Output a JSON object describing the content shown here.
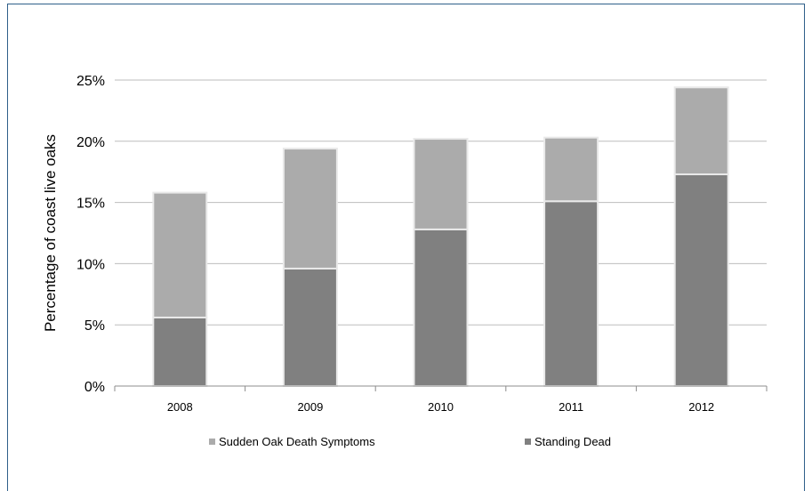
{
  "chart_data": {
    "type": "bar",
    "stacked": true,
    "title": "",
    "xlabel": "",
    "ylabel": "Percentage of coast live oaks",
    "categories": [
      "2008",
      "2009",
      "2010",
      "2011",
      "2012"
    ],
    "series": [
      {
        "name": "Standing Dead",
        "values": [
          5.6,
          9.6,
          12.8,
          15.1,
          17.3
        ],
        "color": "#808080"
      },
      {
        "name": "Sudden Oak Death Symptoms",
        "values": [
          10.2,
          9.8,
          7.4,
          5.2,
          7.1
        ],
        "color": "#ababab"
      }
    ],
    "ylim": [
      0,
      25
    ],
    "yticks": [
      "0%",
      "5%",
      "10%",
      "15%",
      "20%",
      "25%"
    ],
    "grid": true,
    "legend": {
      "position": "bottom",
      "entries": [
        {
          "label": "Sudden Oak Death Symptoms",
          "color": "#ababab"
        },
        {
          "label": "Standing Dead",
          "color": "#808080"
        }
      ]
    }
  }
}
